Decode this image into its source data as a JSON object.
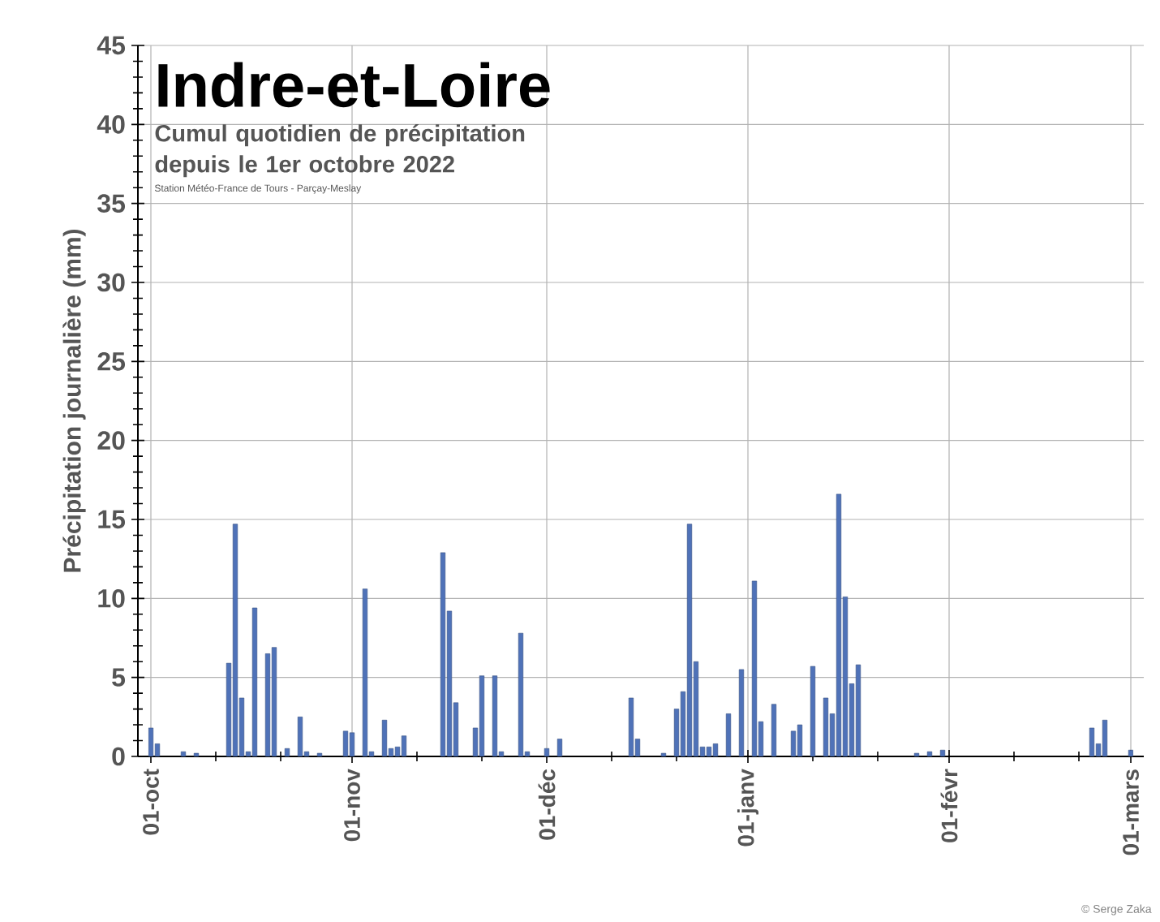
{
  "chart_data": {
    "type": "bar",
    "title": "Indre-et-Loire",
    "subtitle": "Cumul quotidien de précipitation depuis le 1er octobre 2022",
    "ylabel": "Précipitation journalière (mm)",
    "annotations": [
      "Station Météo-France de Tours - Parçay-Meslay",
      "© Serge Zaka"
    ],
    "x": [
      "2022-10-01",
      "2022-10-02",
      "2022-10-06",
      "2022-10-08",
      "2022-10-13",
      "2022-10-14",
      "2022-10-15",
      "2022-10-16",
      "2022-10-17",
      "2022-10-19",
      "2022-10-20",
      "2022-10-22",
      "2022-10-24",
      "2022-10-25",
      "2022-10-27",
      "2022-10-31",
      "2022-11-01",
      "2022-11-03",
      "2022-11-04",
      "2022-11-06",
      "2022-11-07",
      "2022-11-08",
      "2022-11-09",
      "2022-11-15",
      "2022-11-16",
      "2022-11-17",
      "2022-11-20",
      "2022-11-21",
      "2022-11-23",
      "2022-11-24",
      "2022-11-27",
      "2022-11-28",
      "2022-12-01",
      "2022-12-03",
      "2022-12-14",
      "2022-12-15",
      "2022-12-19",
      "2022-12-21",
      "2022-12-22",
      "2022-12-23",
      "2022-12-24",
      "2022-12-25",
      "2022-12-26",
      "2022-12-27",
      "2022-12-29",
      "2022-12-31",
      "2023-01-02",
      "2023-01-03",
      "2023-01-05",
      "2023-01-08",
      "2023-01-09",
      "2023-01-11",
      "2023-01-13",
      "2023-01-14",
      "2023-01-15",
      "2023-01-16",
      "2023-01-17",
      "2023-01-18",
      "2023-01-27",
      "2023-01-29",
      "2023-01-31",
      "2023-02-23",
      "2023-02-24",
      "2023-02-25",
      "2023-03-01"
    ],
    "values": [
      1.8,
      0.8,
      0.3,
      0.2,
      5.9,
      14.7,
      3.7,
      0.3,
      9.4,
      6.5,
      6.9,
      0.5,
      2.5,
      0.3,
      0.2,
      1.6,
      1.5,
      10.6,
      0.3,
      2.3,
      0.5,
      0.6,
      1.3,
      12.9,
      9.2,
      3.4,
      1.8,
      5.1,
      5.1,
      0.3,
      7.8,
      0.3,
      0.5,
      1.1,
      3.7,
      1.1,
      0.2,
      3.0,
      4.1,
      14.7,
      6.0,
      0.6,
      0.6,
      0.8,
      2.7,
      5.5,
      11.1,
      2.2,
      3.3,
      1.6,
      2.0,
      5.7,
      3.7,
      2.7,
      16.6,
      10.1,
      4.6,
      5.8,
      0.2,
      0.3,
      0.4,
      1.8,
      0.8,
      2.3,
      0.4
    ],
    "color": "#4f72b8",
    "xlim": [
      "2022-09-29",
      "2023-03-03"
    ],
    "xticks": [
      {
        "value": "2022-10-01",
        "label": "01-oct"
      },
      {
        "value": "2022-10-11",
        "label": null
      },
      {
        "value": "2022-10-21",
        "label": null
      },
      {
        "value": "2022-11-01",
        "label": "01-nov"
      },
      {
        "value": "2022-11-11",
        "label": null
      },
      {
        "value": "2022-11-21",
        "label": null
      },
      {
        "value": "2022-12-01",
        "label": "01-déc"
      },
      {
        "value": "2022-12-11",
        "label": null
      },
      {
        "value": "2022-12-21",
        "label": null
      },
      {
        "value": "2023-01-01",
        "label": "01-janv"
      },
      {
        "value": "2023-01-11",
        "label": null
      },
      {
        "value": "2023-01-21",
        "label": null
      },
      {
        "value": "2023-02-01",
        "label": "01-févr"
      },
      {
        "value": "2023-02-11",
        "label": null
      },
      {
        "value": "2023-02-21",
        "label": null
      },
      {
        "value": "2023-03-01",
        "label": "01-mars"
      }
    ],
    "ylim": [
      0,
      45
    ],
    "yticks": [
      0,
      5,
      10,
      15,
      20,
      25,
      30,
      35,
      40,
      45,
      {
        "value": 1,
        "label": null
      },
      {
        "value": 2,
        "label": null
      },
      {
        "value": 3,
        "label": null
      },
      {
        "value": 4,
        "label": null
      },
      {
        "value": 6,
        "label": null
      },
      {
        "value": 7,
        "label": null
      },
      {
        "value": 8,
        "label": null
      },
      {
        "value": 9,
        "label": null
      },
      {
        "value": 11,
        "label": null
      },
      {
        "value": 12,
        "label": null
      },
      {
        "value": 13,
        "label": null
      },
      {
        "value": 14,
        "label": null
      },
      {
        "value": 16,
        "label": null
      },
      {
        "value": 17,
        "label": null
      },
      {
        "value": 18,
        "label": null
      },
      {
        "value": 19,
        "label": null
      },
      {
        "value": 21,
        "label": null
      },
      {
        "value": 22,
        "label": null
      },
      {
        "value": 23,
        "label": null
      },
      {
        "value": 24,
        "label": null
      },
      {
        "value": 26,
        "label": null
      },
      {
        "value": 27,
        "label": null
      },
      {
        "value": 28,
        "label": null
      },
      {
        "value": 29,
        "label": null
      },
      {
        "value": 31,
        "label": null
      },
      {
        "value": 32,
        "label": null
      },
      {
        "value": 33,
        "label": null
      },
      {
        "value": 34,
        "label": null
      },
      {
        "value": 36,
        "label": null
      },
      {
        "value": 37,
        "label": null
      },
      {
        "value": 38,
        "label": null
      },
      {
        "value": 39,
        "label": null
      },
      {
        "value": 41,
        "label": null
      },
      {
        "value": 42,
        "label": null
      },
      {
        "value": 43,
        "label": null
      },
      {
        "value": 44,
        "label": null
      }
    ],
    "grid": true
  }
}
